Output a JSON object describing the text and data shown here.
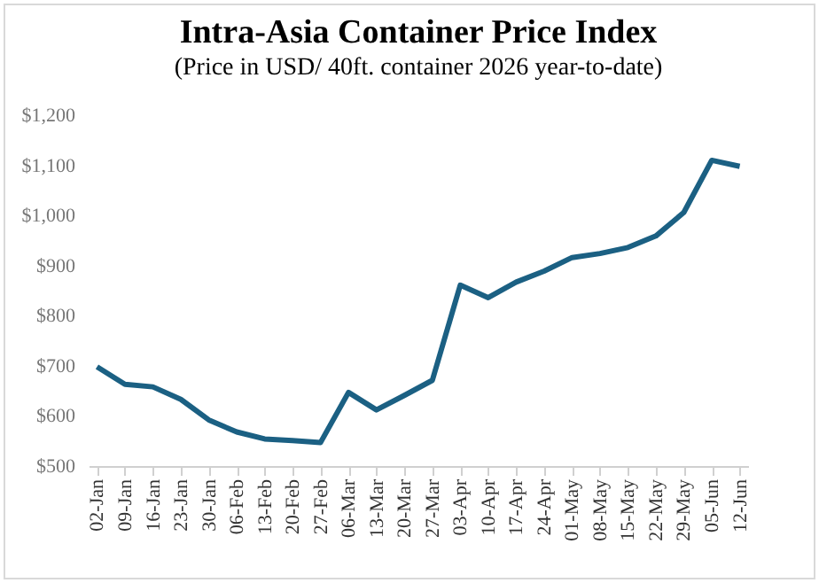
{
  "chart_data": {
    "type": "line",
    "title": "Intra-Asia Container Price Index",
    "subtitle": "(Price in USD/ 40ft. container 2026 year-to-date)",
    "categories": [
      "02-Jan",
      "09-Jan",
      "16-Jan",
      "23-Jan",
      "30-Jan",
      "06-Feb",
      "13-Feb",
      "20-Feb",
      "27-Feb",
      "06-Mar",
      "13-Mar",
      "20-Mar",
      "27-Mar",
      "03-Apr",
      "10-Apr",
      "17-Apr",
      "24-Apr",
      "01-May",
      "08-May",
      "15-May",
      "22-May",
      "29-May",
      "05-Jun",
      "12-Jun"
    ],
    "series": [
      {
        "color": "#1b6083",
        "values": [
          698,
          663,
          658,
          633,
          592,
          568,
          554,
          551,
          547,
          647,
          612,
          641,
          671,
          861,
          836,
          867,
          889,
          916,
          924,
          936,
          959,
          1006,
          1110,
          1098
        ]
      }
    ],
    "ylim": [
      500,
      1200
    ],
    "yticks": [
      {
        "value": 500,
        "label": "$500"
      },
      {
        "value": 600,
        "label": "$600"
      },
      {
        "value": 700,
        "label": "$700"
      },
      {
        "value": 800,
        "label": "$800"
      },
      {
        "value": 900,
        "label": "$900"
      },
      {
        "value": 1000,
        "label": "$1,000"
      },
      {
        "value": 1100,
        "label": "$1,100"
      },
      {
        "value": 1200,
        "label": "$1,200"
      }
    ],
    "grid": false,
    "legend": false,
    "marker": "none",
    "line_style": "solid"
  }
}
